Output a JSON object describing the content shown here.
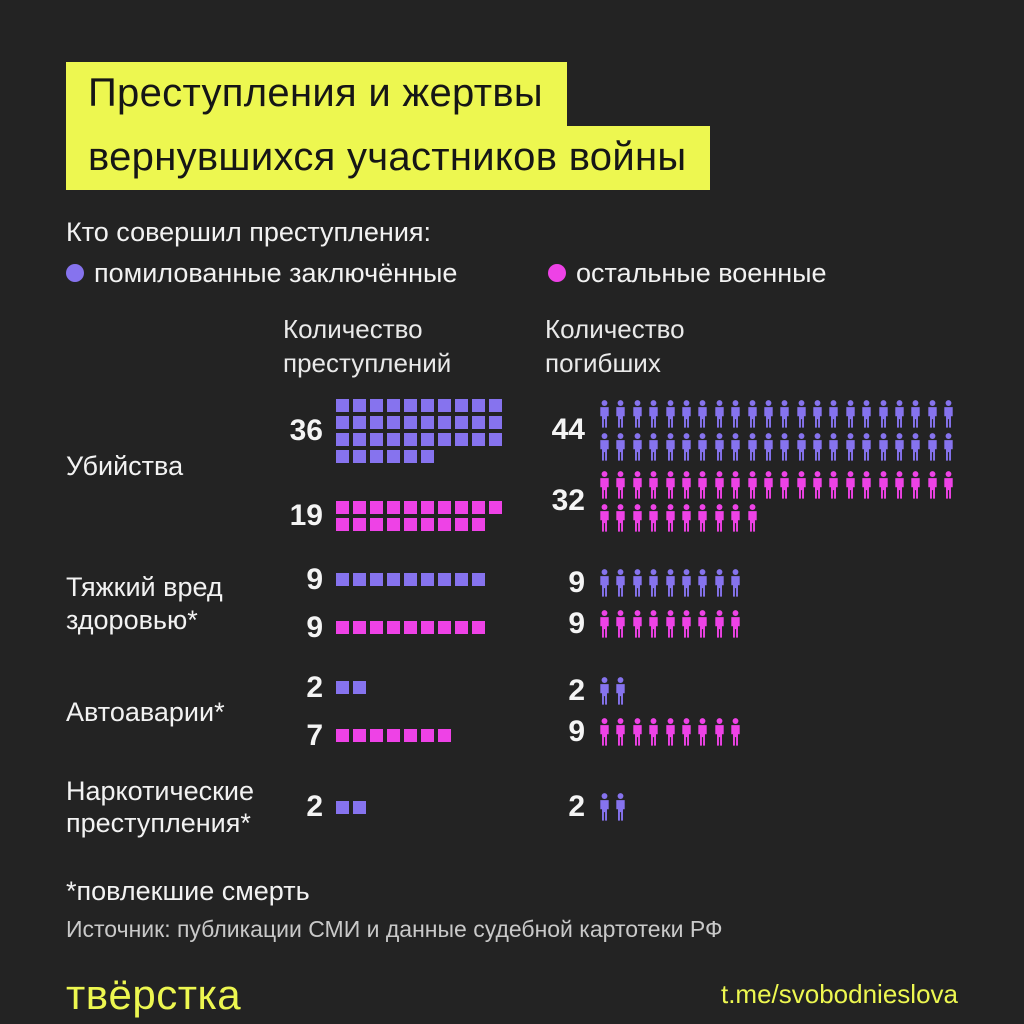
{
  "colors": {
    "background": "#232323",
    "accent_yellow": "#edf750",
    "purple": "#8673ee",
    "magenta": "#ee42e6",
    "text": "#f2f2f2",
    "muted_text": "#c9c9c9"
  },
  "title": {
    "line1": "Преступления и жертвы",
    "line2": "вернувшихся участников войны"
  },
  "legend": {
    "heading": "Кто совершил преступления:",
    "items": [
      {
        "label": "помилованные заключённые",
        "color": "purple"
      },
      {
        "label": "остальные военные",
        "color": "magenta"
      }
    ]
  },
  "columns_header": {
    "crimes": [
      "Количество",
      "преступлений"
    ],
    "deaths": [
      "Количество",
      "погибших"
    ]
  },
  "chart_data": {
    "type": "pictogram",
    "icon_unit": 1,
    "squares_per_row": 10,
    "persons_per_row": 22,
    "square_icon_meaning": "one crime",
    "person_icon_meaning": "one death",
    "categories": [
      "Убийства",
      "Тяжкий вред здоровью*",
      "Автоаварии*",
      "Наркотические преступления*"
    ],
    "series": [
      {
        "name": "помилованные заключённые",
        "color": "purple",
        "crimes": [
          36,
          9,
          2,
          2
        ],
        "deaths": [
          44,
          9,
          2,
          2
        ]
      },
      {
        "name": "остальные военные",
        "color": "magenta",
        "crimes": [
          19,
          9,
          7,
          null
        ],
        "deaths": [
          32,
          9,
          9,
          null
        ]
      }
    ],
    "rows": [
      {
        "label_lines": [
          "Убийства"
        ],
        "crimes": [
          {
            "series": "помилованные заключённые",
            "color": "purple",
            "value": 36
          },
          {
            "series": "остальные военные",
            "color": "magenta",
            "value": 19
          }
        ],
        "deaths": [
          {
            "series": "помилованные заключённые",
            "color": "purple",
            "value": 44
          },
          {
            "series": "остальные военные",
            "color": "magenta",
            "value": 32
          }
        ]
      },
      {
        "label_lines": [
          "Тяжкий вред",
          "здоровью*"
        ],
        "crimes": [
          {
            "series": "помилованные заключённые",
            "color": "purple",
            "value": 9
          },
          {
            "series": "остальные военные",
            "color": "magenta",
            "value": 9
          }
        ],
        "deaths": [
          {
            "series": "помилованные заключённые",
            "color": "purple",
            "value": 9
          },
          {
            "series": "остальные военные",
            "color": "magenta",
            "value": 9
          }
        ]
      },
      {
        "label_lines": [
          "Автоаварии*"
        ],
        "crimes": [
          {
            "series": "помилованные заключённые",
            "color": "purple",
            "value": 2
          },
          {
            "series": "остальные военные",
            "color": "magenta",
            "value": 7
          }
        ],
        "deaths": [
          {
            "series": "помилованные заключённые",
            "color": "purple",
            "value": 2
          },
          {
            "series": "остальные военные",
            "color": "magenta",
            "value": 9
          }
        ]
      },
      {
        "label_lines": [
          "Наркотические",
          "преступления*"
        ],
        "crimes": [
          {
            "series": "помилованные заключённые",
            "color": "purple",
            "value": 2
          }
        ],
        "deaths": [
          {
            "series": "помилованные заключённые",
            "color": "purple",
            "value": 2
          }
        ]
      }
    ]
  },
  "footer": {
    "footnote": "*повлекшие смерть",
    "source": "Источник: публикации СМИ и данные судебной картотеки РФ",
    "logo": "твёрстка",
    "telegram": "t.me/svobodnieslova"
  }
}
